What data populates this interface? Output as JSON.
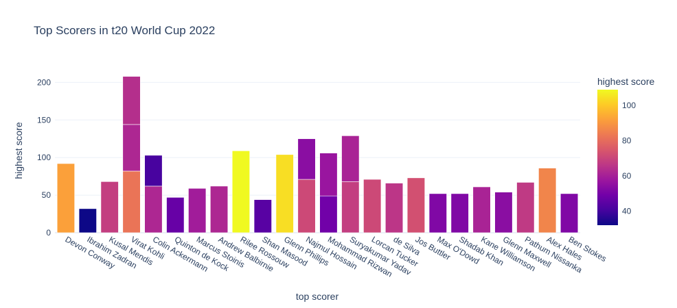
{
  "chart_data": {
    "type": "bar",
    "title": "Top Scorers in t20 World Cup 2022",
    "xlabel": "top scorer",
    "ylabel": "highest score",
    "ylim": [
      0,
      220
    ],
    "yticks": [
      0,
      50,
      100,
      150,
      200
    ],
    "categories": [
      "Devon Conway",
      "Ibrahim Zadran",
      "Kusal Mendis",
      "Virat Kohli",
      "Colin Ackermann",
      "Quinton de Kock",
      "Marcus Stoinis",
      "Andrew Balbirnie",
      "Rilee Rossouw",
      "Shan Masood",
      "Glenn Phillips",
      "Najmul Hossain",
      "Mohammad Rizwan",
      "Suryakumar Yadav",
      "Lorcan Tucker",
      "de Silva",
      "Jos Buttler",
      "Max O'Dowd",
      "Shadab Khan",
      "Kane Williamson",
      "Glenn Maxwell",
      "Pathum Nissanka",
      "Alex Hales",
      "Ben Stokes"
    ],
    "stacks": [
      [
        92
      ],
      [
        32
      ],
      [
        68
      ],
      [
        82,
        62,
        64
      ],
      [
        62,
        41
      ],
      [
        47
      ],
      [
        59
      ],
      [
        62
      ],
      [
        109
      ],
      [
        44
      ],
      [
        104
      ],
      [
        71,
        54
      ],
      [
        49,
        57
      ],
      [
        68,
        61
      ],
      [
        71
      ],
      [
        66
      ],
      [
        73
      ],
      [
        52
      ],
      [
        52
      ],
      [
        61
      ],
      [
        54
      ],
      [
        67
      ],
      [
        86
      ],
      [
        52
      ]
    ],
    "colorbar": {
      "title": "highest score",
      "min": 32,
      "max": 109,
      "ticks": [
        40,
        60,
        80,
        100
      ],
      "colorscale": [
        "#0d0887",
        "#46039f",
        "#7201a8",
        "#9c179e",
        "#bd3786",
        "#d8576b",
        "#ed7953",
        "#fb9f3a",
        "#fdca26",
        "#f0f921"
      ]
    }
  }
}
